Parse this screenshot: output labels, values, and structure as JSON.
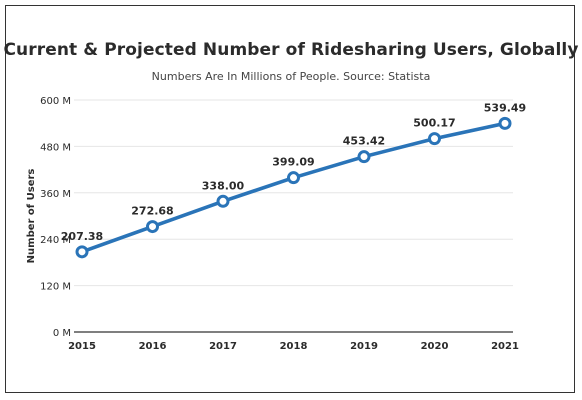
{
  "chart_data": {
    "type": "line",
    "title": "Current & Projected Number of Ridesharing Users, Globally",
    "subtitle": "Numbers Are In Millions of People. Source: Statista",
    "xlabel": "",
    "ylabel": "Number of Users",
    "x": [
      "2015",
      "2016",
      "2017",
      "2018",
      "2019",
      "2020",
      "2021"
    ],
    "series": [
      {
        "values": [
          207.38,
          272.68,
          338.0,
          399.09,
          453.42,
          500.17,
          539.49
        ],
        "labels": [
          "207.38",
          "272.68",
          "338.00",
          "399.09",
          "453.42",
          "500.17",
          "539.49"
        ]
      }
    ],
    "yticks": [
      0,
      120,
      240,
      360,
      480,
      600
    ],
    "ytick_labels": [
      "0 M",
      "120 M",
      "240 M",
      "360 M",
      "480 M",
      "600 M"
    ],
    "ylim": [
      0,
      600
    ],
    "grid": true,
    "legend": "none",
    "colors": {
      "line": "#2a74b8",
      "marker_fill": "#ffffff",
      "grid": "#e6e6e6",
      "axis": "#333333",
      "text": "#2b2b2b"
    }
  }
}
